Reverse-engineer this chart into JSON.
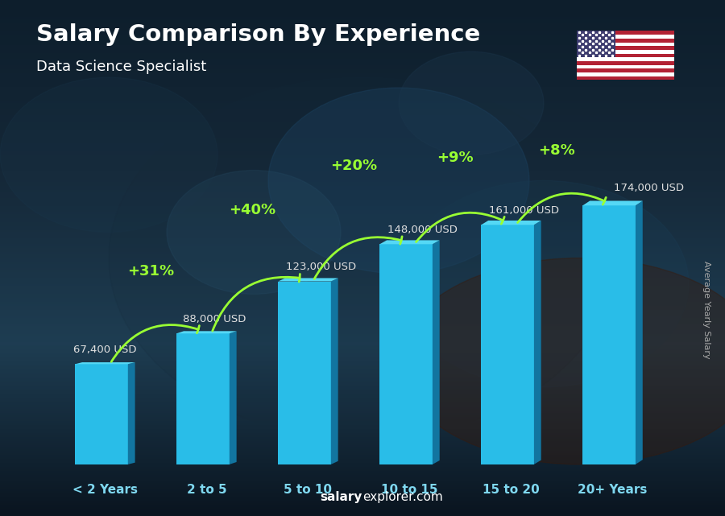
{
  "title": "Salary Comparison By Experience",
  "subtitle": "Data Science Specialist",
  "categories": [
    "< 2 Years",
    "2 to 5",
    "5 to 10",
    "10 to 15",
    "15 to 20",
    "20+ Years"
  ],
  "values": [
    67400,
    88000,
    123000,
    148000,
    161000,
    174000
  ],
  "labels": [
    "67,400 USD",
    "88,000 USD",
    "123,000 USD",
    "148,000 USD",
    "161,000 USD",
    "174,000 USD"
  ],
  "pct_changes": [
    "+31%",
    "+40%",
    "+20%",
    "+9%",
    "+8%"
  ],
  "bar_color_main": "#29bde8",
  "bar_color_side": "#1275a0",
  "bar_color_top": "#55d8f5",
  "bg_top": "#1a3040",
  "bg_bottom": "#0d1f2d",
  "title_color": "#ffffff",
  "subtitle_color": "#ffffff",
  "label_color": "#e0e0e0",
  "pct_color": "#99ff33",
  "arrow_color": "#99ff33",
  "xlabel_color": "#7fd8f0",
  "ylabel_text": "Average Yearly Salary",
  "footer_normal": "explorer.com",
  "footer_bold": "salary",
  "ylim": [
    0,
    215000
  ],
  "bar_width": 0.52,
  "side_depth": 0.07,
  "figsize": [
    9.0,
    6.41
  ],
  "dpi": 100
}
